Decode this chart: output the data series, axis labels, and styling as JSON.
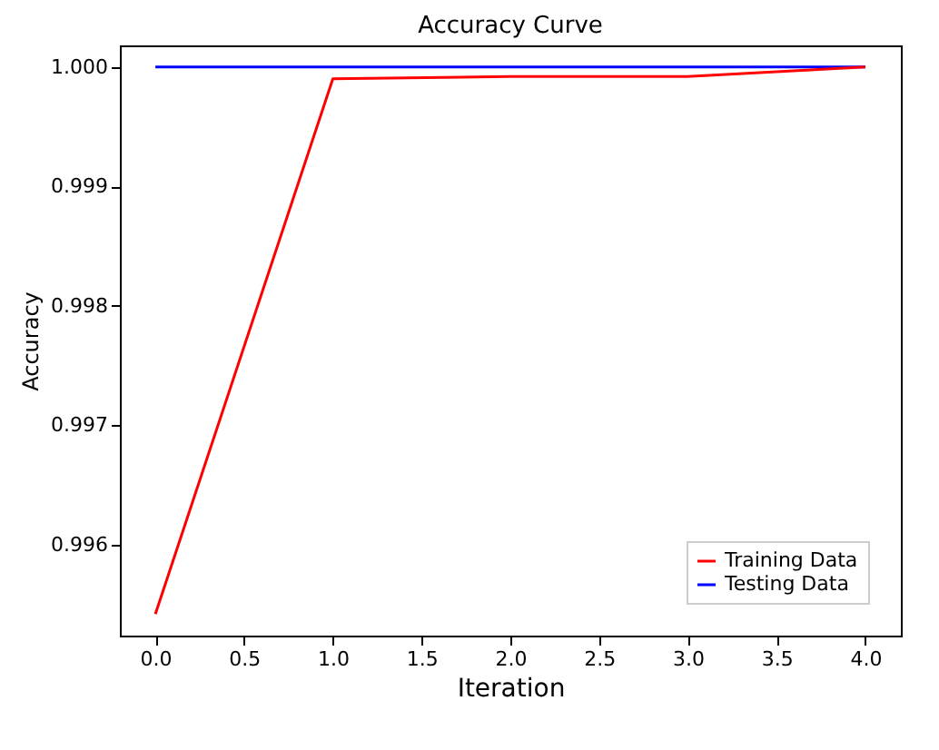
{
  "chart_data": {
    "type": "line",
    "title": "Accuracy Curve",
    "xlabel": "Iteration",
    "ylabel": "Accuracy",
    "x": [
      0,
      1,
      2,
      3,
      4
    ],
    "series": [
      {
        "name": "Training Data",
        "color": "#ff0000",
        "values": [
          0.99542,
          0.9999,
          0.99992,
          0.99992,
          1.0
        ]
      },
      {
        "name": "Testing Data",
        "color": "#0000ff",
        "values": [
          1.0,
          1.0,
          1.0,
          1.0,
          1.0
        ]
      }
    ],
    "xlim": [
      -0.2,
      4.2
    ],
    "ylim": [
      0.99524,
      1.00018
    ],
    "xticks": [
      {
        "value": 0,
        "label": "0.0"
      },
      {
        "value": 0.5,
        "label": "0.5"
      },
      {
        "value": 1,
        "label": "1.0"
      },
      {
        "value": 1.5,
        "label": "1.5"
      },
      {
        "value": 2,
        "label": "2.0"
      },
      {
        "value": 2.5,
        "label": "2.5"
      },
      {
        "value": 3,
        "label": "3.0"
      },
      {
        "value": 3.5,
        "label": "3.5"
      },
      {
        "value": 4,
        "label": "4.0"
      }
    ],
    "yticks": [
      0.996,
      0.997,
      0.998,
      0.999,
      {
        "value": 1,
        "label": "1.000"
      }
    ],
    "legend": "bottom right",
    "grid": false,
    "marker": "none",
    "line_style": "solid"
  }
}
